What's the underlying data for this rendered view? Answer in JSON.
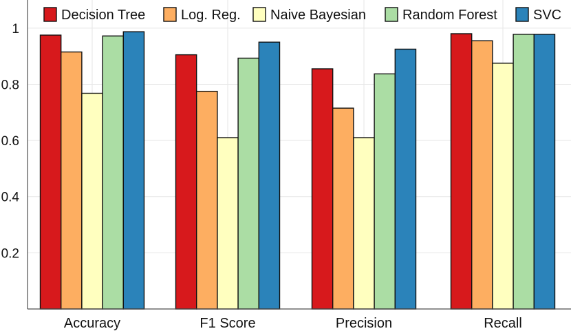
{
  "chart_data": {
    "type": "bar",
    "title": "",
    "xlabel": "",
    "ylabel": "",
    "ylim": [
      0,
      1.1
    ],
    "yticks": [
      0.2,
      0.4,
      0.6,
      0.8,
      1
    ],
    "ytick_labels": [
      "0.2",
      "0.4",
      "0.6",
      "0.8",
      "1"
    ],
    "grid": true,
    "legend_position": "top",
    "categories": [
      "Accuracy",
      "F1 Score",
      "Precision",
      "Recall"
    ],
    "series": [
      {
        "name": "Decision Tree",
        "color": "#d7191c",
        "values": [
          0.975,
          0.905,
          0.855,
          0.98
        ]
      },
      {
        "name": "Log. Reg.",
        "color": "#fdae61",
        "values": [
          0.915,
          0.775,
          0.715,
          0.955
        ]
      },
      {
        "name": "Naive Bayesian",
        "color": "#ffffbf",
        "values": [
          0.768,
          0.61,
          0.61,
          0.875
        ]
      },
      {
        "name": "Random Forest",
        "color": "#abdda4",
        "values": [
          0.972,
          0.893,
          0.837,
          0.978
        ]
      },
      {
        "name": "SVC",
        "color": "#2b83ba",
        "values": [
          0.987,
          0.95,
          0.925,
          0.978
        ]
      }
    ]
  }
}
